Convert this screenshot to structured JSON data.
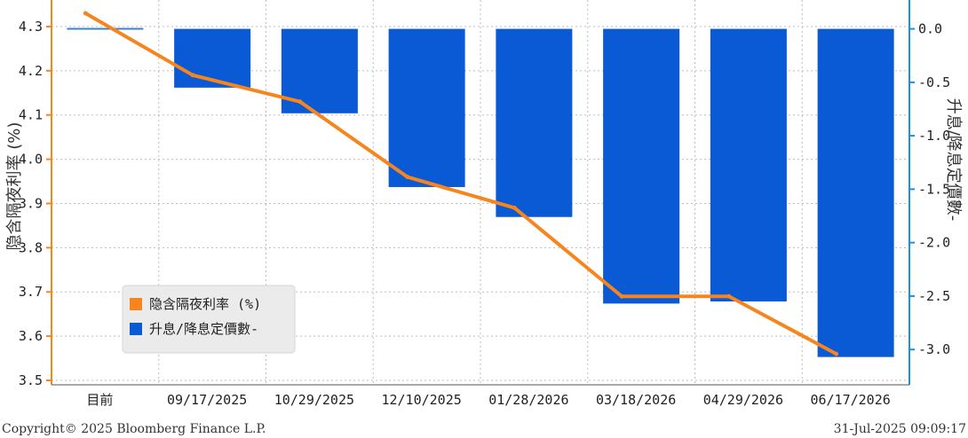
{
  "chart_data": {
    "type": "bar",
    "categories": [
      "目前",
      "09/17/2025",
      "10/29/2025",
      "12/10/2025",
      "01/28/2026",
      "03/18/2026",
      "04/29/2026",
      "06/17/2026"
    ],
    "series": [
      {
        "name": "隐含隔夜利率 (%)",
        "type": "line",
        "axis": "left",
        "color": "#F7851E",
        "values": [
          4.33,
          4.19,
          4.13,
          3.96,
          3.89,
          3.69,
          3.69,
          3.56
        ]
      },
      {
        "name": "升息/降息定價數-",
        "type": "bar",
        "axis": "right",
        "color": "#0A5AD6",
        "values": [
          0.0,
          -0.55,
          -0.79,
          -1.48,
          -1.76,
          -2.57,
          -2.55,
          -3.07
        ]
      }
    ],
    "ylabel_left": "隐含隔夜利率 (%)",
    "ylabel_right": "升息/降息定價數-",
    "ylim_left": [
      3.49,
      4.36
    ],
    "yticks_left": [
      "4.3",
      "4.2",
      "4.1",
      "4.0",
      "3.9",
      "3.8",
      "3.7",
      "3.6",
      "3.5"
    ],
    "ylim_right": [
      -3.33,
      0.27
    ],
    "yticks_right": [
      "0.0",
      "-0.5",
      "-1.0",
      "-1.5",
      "-2.0",
      "-2.5",
      "-3.0"
    ],
    "grid": true,
    "legend_position": "bottom-left"
  },
  "footer": {
    "copyright": "Copyright© 2025 Bloomberg Finance L.P.",
    "timestamp": "31-Jul-2025 09:09:17"
  },
  "colors": {
    "left_axis": "#F7851E",
    "right_axis": "#1E8FE0",
    "grid": "#BDBDBD"
  }
}
